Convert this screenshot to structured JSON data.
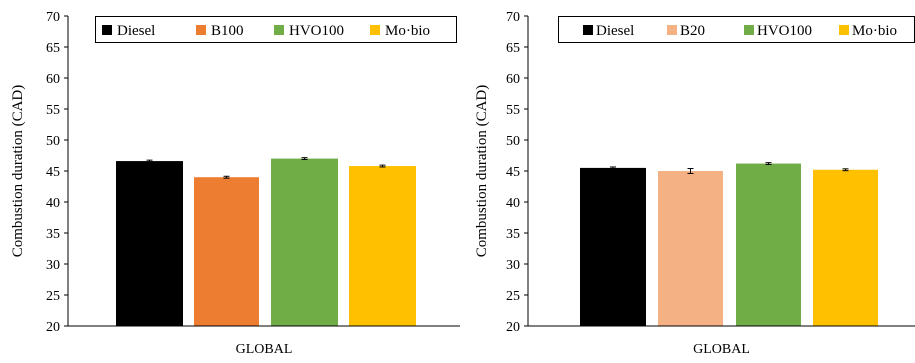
{
  "chart_data": [
    {
      "type": "bar",
      "categories": [
        "GLOBAL"
      ],
      "ylabel": "Combustion  duration  (CAD)",
      "ylim": [
        20,
        70
      ],
      "yticks": [
        20,
        25,
        30,
        35,
        40,
        45,
        50,
        55,
        60,
        65,
        70
      ],
      "grid": false,
      "legend_position": "top",
      "series": [
        {
          "name": "Diesel",
          "values": [
            46.6
          ],
          "error": [
            0.15
          ],
          "color": "#000000"
        },
        {
          "name": "B100",
          "values": [
            44.0
          ],
          "error": [
            0.15
          ],
          "color": "#ED7D31"
        },
        {
          "name": "HVO100",
          "values": [
            47.0
          ],
          "error": [
            0.15
          ],
          "color": "#70AD47"
        },
        {
          "name": "Mo·bio",
          "values": [
            45.8
          ],
          "error": [
            0.15
          ],
          "color": "#FFC000"
        }
      ]
    },
    {
      "type": "bar",
      "categories": [
        "GLOBAL"
      ],
      "ylabel": "Combustion  duration  (CAD)",
      "ylim": [
        20,
        70
      ],
      "yticks": [
        20,
        25,
        30,
        35,
        40,
        45,
        50,
        55,
        60,
        65,
        70
      ],
      "grid": false,
      "legend_position": "top",
      "series": [
        {
          "name": "Diesel",
          "values": [
            45.5
          ],
          "error": [
            0.15
          ],
          "color": "#000000"
        },
        {
          "name": "B20",
          "values": [
            45.0
          ],
          "error": [
            0.4
          ],
          "color": "#F4B183"
        },
        {
          "name": "HVO100",
          "values": [
            46.2
          ],
          "error": [
            0.15
          ],
          "color": "#70AD47"
        },
        {
          "name": "Mo·bio",
          "values": [
            45.2
          ],
          "error": [
            0.15
          ],
          "color": "#FFC000"
        }
      ]
    }
  ]
}
